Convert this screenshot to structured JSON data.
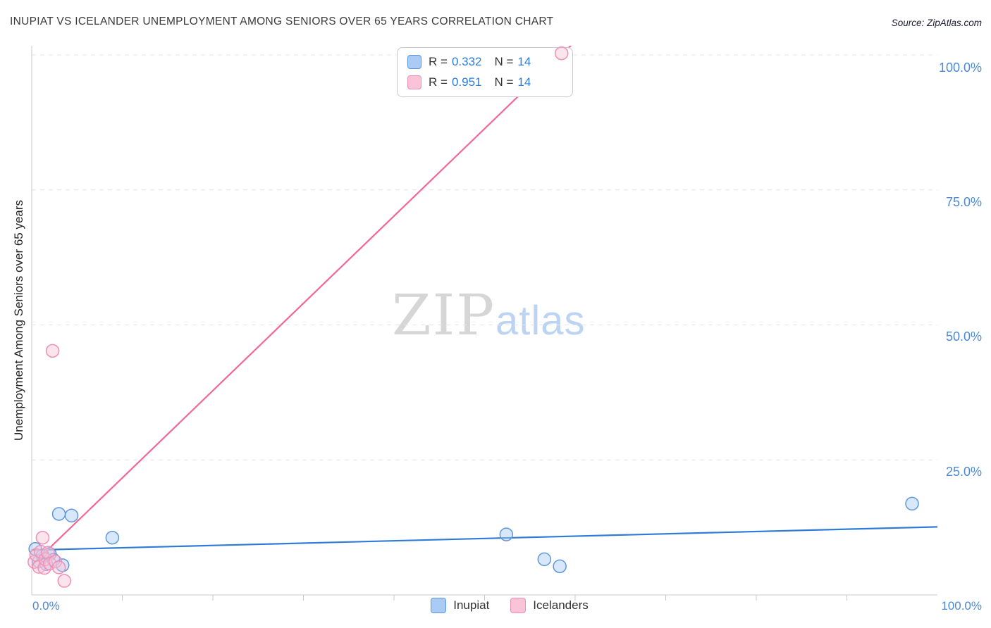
{
  "header": {
    "title": "INUPIAT VS ICELANDER UNEMPLOYMENT AMONG SENIORS OVER 65 YEARS CORRELATION CHART",
    "source": "Source: ZipAtlas.com"
  },
  "watermark": {
    "zip": "ZIP",
    "atlas": "atlas"
  },
  "legend_box": {
    "rows": [
      {
        "series": "Inupiat",
        "r_label": "R =",
        "r_value": "0.332",
        "n_label": "N =",
        "n_value": "14"
      },
      {
        "series": "Icelanders",
        "r_label": "R =",
        "r_value": "0.951",
        "n_label": "N =",
        "n_value": "14"
      }
    ]
  },
  "bottom_legend": {
    "items": [
      {
        "label": "Inupiat"
      },
      {
        "label": "Icelanders"
      }
    ]
  },
  "axes": {
    "y_tick_labels": [
      "100.0%",
      "75.0%",
      "50.0%",
      "25.0%"
    ],
    "x_left_label": "0.0%",
    "x_right_label": "100.0%"
  },
  "colors": {
    "grid": "#e4e4e4",
    "axis": "#c9c9c9",
    "tick_label": "#4a89da",
    "blue_fill": "#a9cbf5",
    "blue_stroke": "#5e96dc",
    "blue_trend": "#2e7cd6",
    "pink_fill": "#f9c4d8",
    "pink_stroke": "#ef8fb4",
    "pink_trend": "#f2679a"
  },
  "chart_data": {
    "type": "scatter",
    "title": "INUPIAT VS ICELANDER UNEMPLOYMENT AMONG SENIORS OVER 65 YEARS CORRELATION CHART",
    "xlabel": "",
    "ylabel": "Unemployment Among Seniors over 65 years",
    "xlim": [
      0,
      100
    ],
    "ylim": [
      0,
      105
    ],
    "x_unit": "%",
    "y_unit": "%",
    "grid": "dashed horizontal at 25/50/75/100",
    "legend_position": "top-center and bottom-center",
    "y_ticks": [
      25,
      50,
      75,
      100
    ],
    "series": [
      {
        "name": "Inupiat",
        "R": 0.332,
        "N": 14,
        "fill": "#a9cbf5",
        "stroke": "#5e96dc",
        "points": [
          [
            0.4,
            8.5
          ],
          [
            0.8,
            6.2
          ],
          [
            1.2,
            7.3
          ],
          [
            1.6,
            5.7
          ],
          [
            2.0,
            7.6
          ],
          [
            2.4,
            6.5
          ],
          [
            3.0,
            15.0
          ],
          [
            3.4,
            5.5
          ],
          [
            4.4,
            14.7
          ],
          [
            8.9,
            10.6
          ],
          [
            52.4,
            11.2
          ],
          [
            56.6,
            6.6
          ],
          [
            58.3,
            5.3
          ],
          [
            97.2,
            16.9
          ]
        ]
      },
      {
        "name": "Icelanders",
        "R": 0.951,
        "N": 14,
        "fill": "#f9c4d8",
        "stroke": "#ef8fb4",
        "points": [
          [
            0.3,
            6.1
          ],
          [
            0.5,
            7.4
          ],
          [
            0.8,
            5.2
          ],
          [
            1.0,
            8.0
          ],
          [
            1.2,
            10.6
          ],
          [
            1.4,
            5.0
          ],
          [
            1.5,
            6.6
          ],
          [
            1.8,
            7.8
          ],
          [
            2.0,
            5.8
          ],
          [
            2.3,
            45.2
          ],
          [
            2.6,
            6.2
          ],
          [
            3.0,
            5.1
          ],
          [
            3.6,
            2.6
          ],
          [
            58.5,
            100.3
          ]
        ]
      }
    ],
    "trend_lines": [
      {
        "series": "Inupiat",
        "color": "#2e7cd6",
        "from": [
          0,
          8.3
        ],
        "to": [
          100,
          12.6
        ]
      },
      {
        "series": "Icelanders",
        "color": "#f2679a",
        "from": [
          0,
          5.5
        ],
        "to": [
          60,
          102.5
        ]
      }
    ]
  }
}
